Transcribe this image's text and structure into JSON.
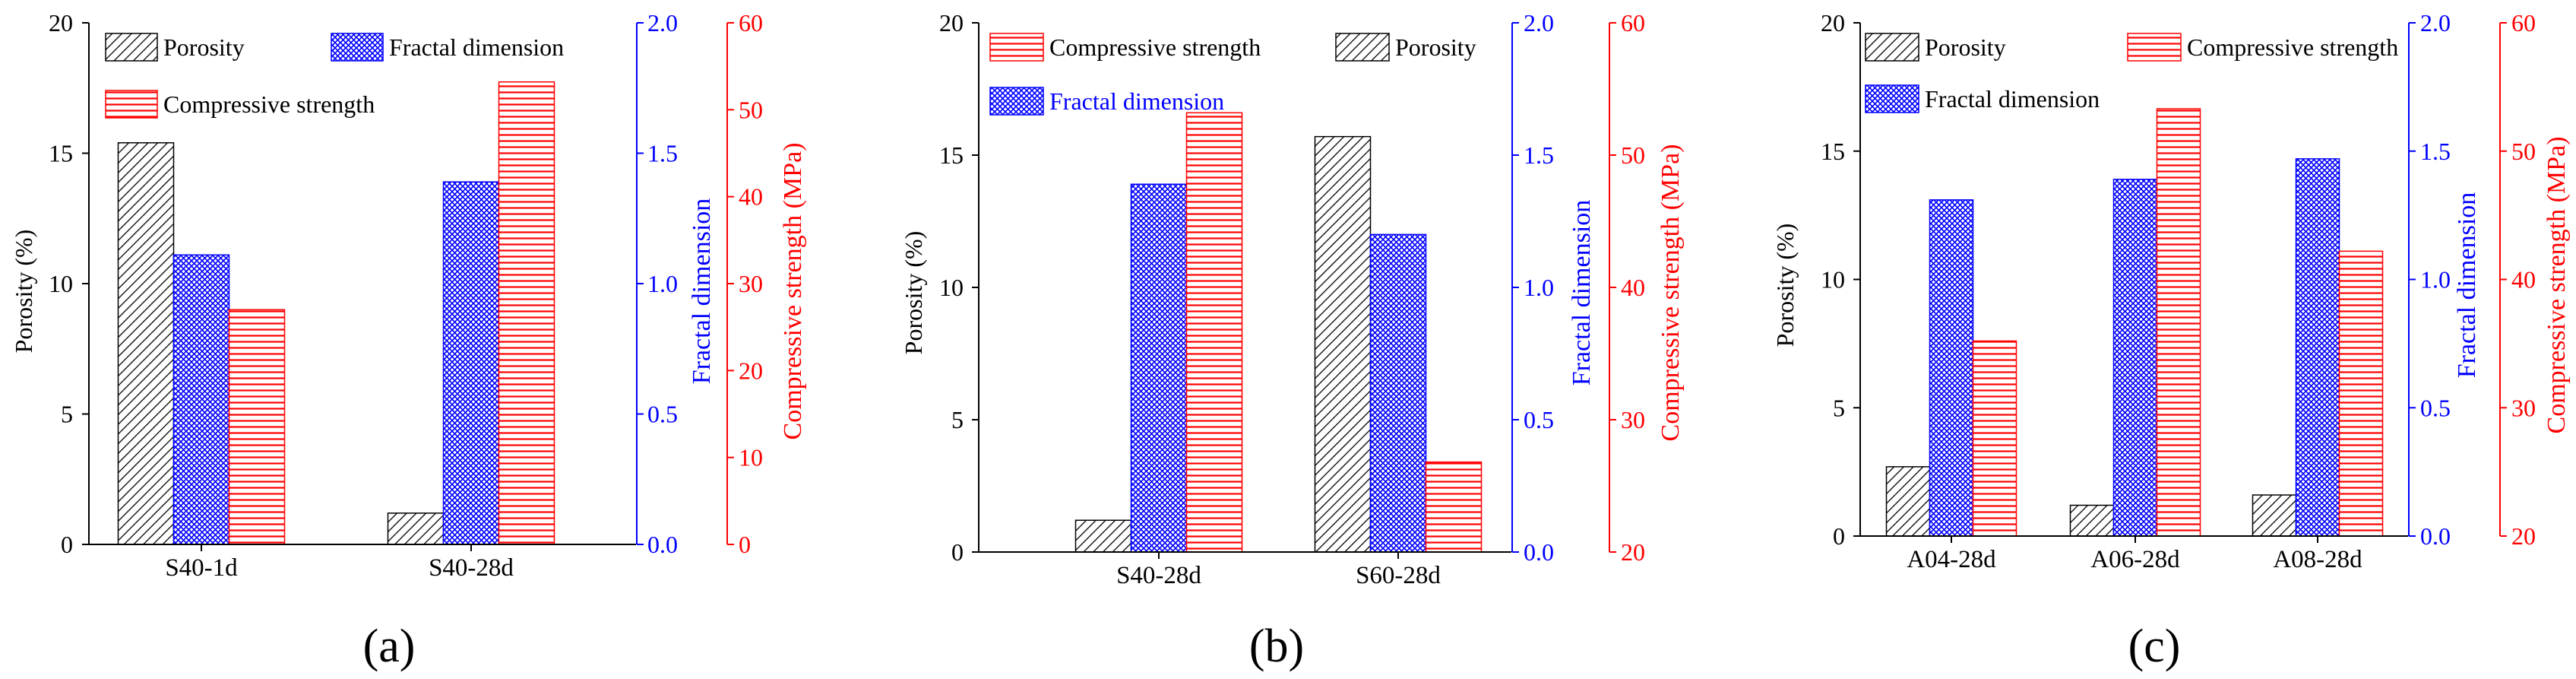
{
  "colors": {
    "porosity": "#000000",
    "fractal": "#0000ff",
    "strength": "#ff0000",
    "axis_left": "#000000",
    "axis_mid": "#0000ff",
    "axis_right": "#ff0000"
  },
  "chart_data": [
    {
      "type": "bar",
      "panel_label": "(a)",
      "categories": [
        "S40-1d",
        "S40-28d"
      ],
      "series": [
        {
          "name": "Porosity",
          "axis": "left",
          "values": [
            15.4,
            1.2
          ]
        },
        {
          "name": "Fractal dimension",
          "axis": "mid",
          "values": [
            1.11,
            1.39
          ]
        },
        {
          "name": "Compressive strength",
          "axis": "right",
          "values": [
            27.0,
            53.2
          ]
        }
      ],
      "legend_order": [
        "Porosity",
        "Fractal dimension",
        "Compressive strength"
      ],
      "axes": {
        "left": {
          "label": "Porosity (%)",
          "lim": [
            0,
            20
          ],
          "ticks": [
            "0",
            "5",
            "10",
            "15",
            "20"
          ]
        },
        "mid": {
          "label": "Fractal dimension",
          "lim": [
            0,
            2
          ],
          "ticks": [
            "0.0",
            "0.5",
            "1.0",
            "1.5",
            "2.0"
          ]
        },
        "right": {
          "label": "Compressive strength (MPa)",
          "lim": [
            0,
            60
          ],
          "ticks": [
            "0",
            "10",
            "20",
            "30",
            "40",
            "50",
            "60"
          ]
        }
      }
    },
    {
      "type": "bar",
      "panel_label": "(b)",
      "categories": [
        "S40-28d",
        "S60-28d"
      ],
      "series": [
        {
          "name": "Porosity",
          "axis": "left",
          "values": [
            1.2,
            15.7
          ]
        },
        {
          "name": "Fractal dimension",
          "axis": "mid",
          "values": [
            1.39,
            1.2
          ]
        },
        {
          "name": "Compressive strength",
          "axis": "right",
          "values": [
            53.2,
            26.8
          ]
        }
      ],
      "legend_order": [
        "Compressive strength",
        "Porosity",
        "Fractal dimension"
      ],
      "axes": {
        "left": {
          "label": "Porosity (%)",
          "lim": [
            0,
            20
          ],
          "ticks": [
            "0",
            "5",
            "10",
            "15",
            "20"
          ]
        },
        "mid": {
          "label": "Fractal dimension",
          "lim": [
            0,
            2
          ],
          "ticks": [
            "0.0",
            "0.5",
            "1.0",
            "1.5",
            "2.0"
          ]
        },
        "right": {
          "label": "Compressive strength (MPa)",
          "lim": [
            20,
            60
          ],
          "ticks": [
            "20",
            "30",
            "40",
            "50",
            "60"
          ]
        }
      }
    },
    {
      "type": "bar",
      "panel_label": "(c)",
      "categories": [
        "A04-28d",
        "A06-28d",
        "A08-28d"
      ],
      "series": [
        {
          "name": "Porosity",
          "axis": "left",
          "values": [
            2.7,
            1.2,
            1.6
          ]
        },
        {
          "name": "Fractal dimension",
          "axis": "mid",
          "values": [
            1.31,
            1.39,
            1.47
          ]
        },
        {
          "name": "Compressive strength",
          "axis": "right",
          "values": [
            35.2,
            53.3,
            42.2
          ]
        }
      ],
      "legend_order": [
        "Porosity",
        "Compressive strength",
        "Fractal dimension"
      ],
      "axes": {
        "left": {
          "label": "Porosity (%)",
          "lim": [
            0,
            20
          ],
          "ticks": [
            "0",
            "5",
            "10",
            "15",
            "20"
          ]
        },
        "mid": {
          "label": "Fractal dimension",
          "lim": [
            0,
            2
          ],
          "ticks": [
            "0.0",
            "0.5",
            "1.0",
            "1.5",
            "2.0"
          ]
        },
        "right": {
          "label": "Compressive strength (MPa)",
          "lim": [
            20,
            60
          ],
          "ticks": [
            "20",
            "30",
            "40",
            "50",
            "60"
          ]
        }
      }
    }
  ]
}
